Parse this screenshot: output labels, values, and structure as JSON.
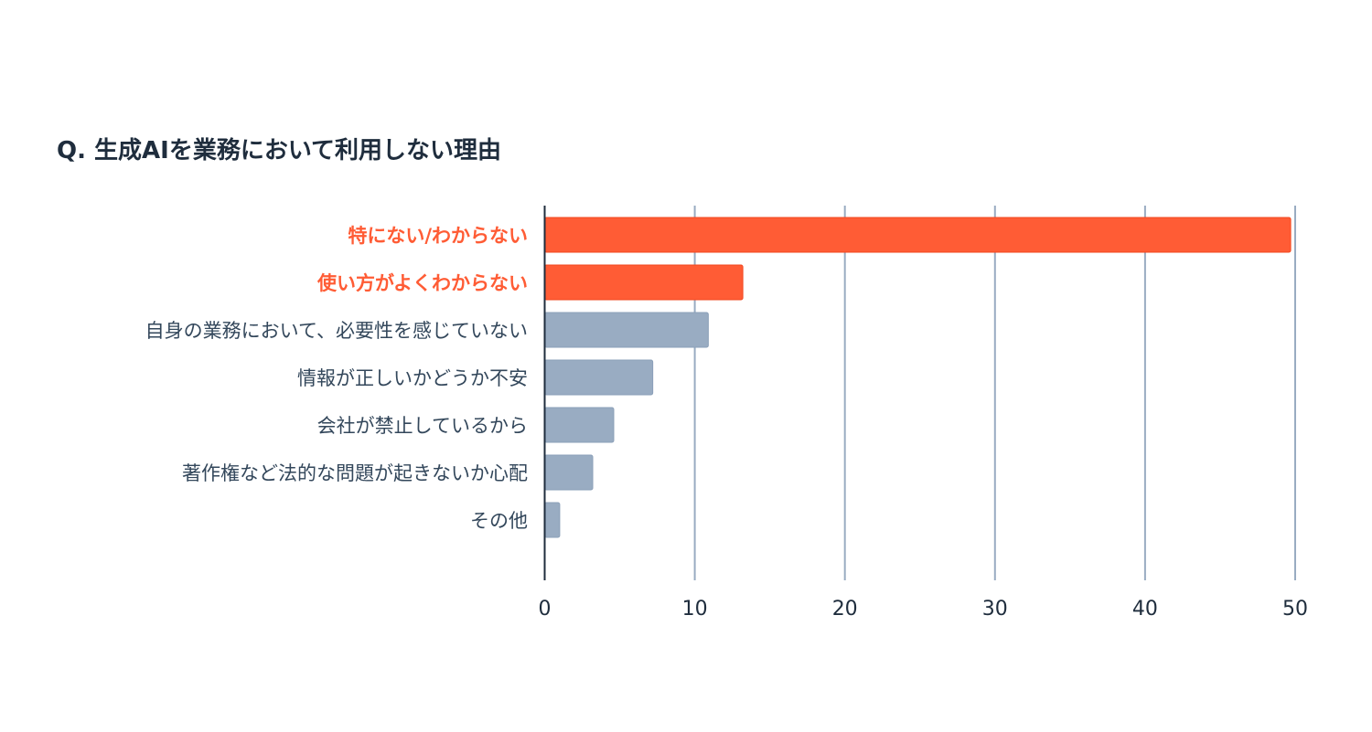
{
  "chart_data": {
    "type": "bar",
    "orientation": "horizontal",
    "title": "Q. 生成AIを業務において利用しない理由",
    "categories": [
      "特にない/わからない",
      "使い方がよくわからない",
      "自身の業務において、必要性を感じていない",
      "情報が正しいかどうか不安",
      "会社が禁止しているから",
      "著作権など法的な問題が起きないか心配",
      "その他"
    ],
    "values": [
      49.7,
      13.2,
      10.9,
      7.2,
      4.6,
      3.2,
      1.0
    ],
    "highlighted": [
      true,
      true,
      false,
      false,
      false,
      false,
      false
    ],
    "xlabel": "",
    "ylabel": "",
    "xlim": [
      0,
      50
    ],
    "xticks": [
      "0",
      "10",
      "20",
      "30",
      "40",
      "50"
    ],
    "grid": true,
    "colors": {
      "highlight": "#ff5c35",
      "default": "#99acc2",
      "grid": "#99acc2",
      "axis": "#1f2d3d",
      "title": "#1f2d3d"
    }
  }
}
